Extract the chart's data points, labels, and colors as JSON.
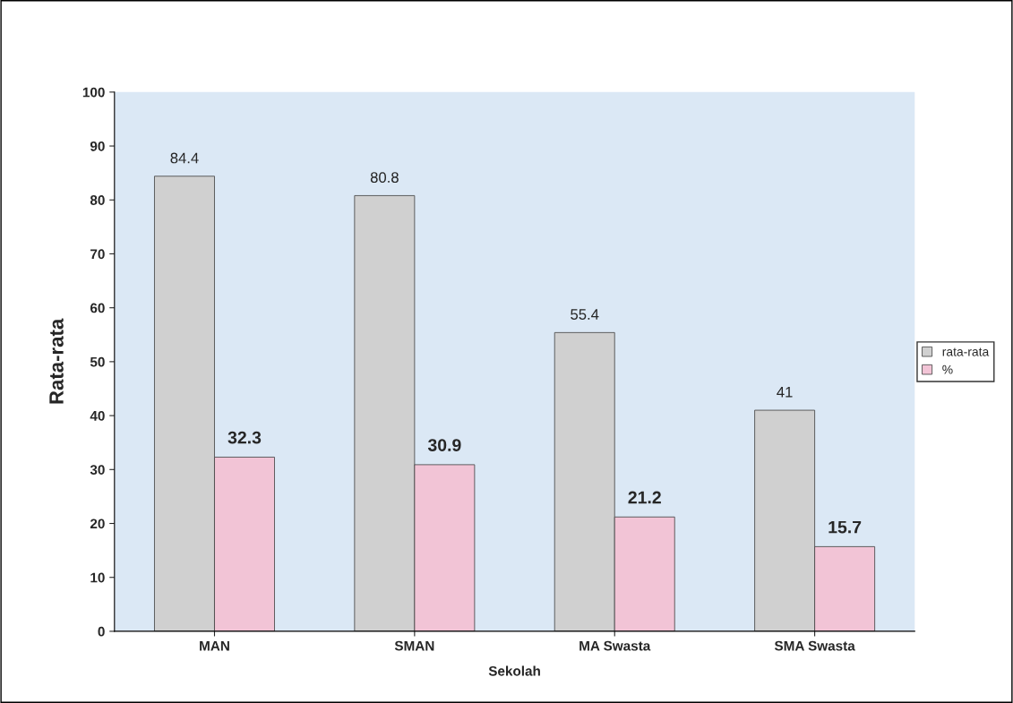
{
  "chart_data": {
    "type": "bar",
    "xlabel": "Sekolah",
    "ylabel": "Rata-rata",
    "categories": [
      "MAN",
      "SMAN",
      "MA Swasta",
      "SMA Swasta"
    ],
    "series": [
      {
        "name": "rata-rata",
        "color": "#d0d0d0",
        "values": [
          84.4,
          80.8,
          55.4,
          41
        ]
      },
      {
        "name": "%",
        "color": "#f2c4d6",
        "values": [
          32.3,
          30.9,
          21.2,
          15.7
        ]
      }
    ],
    "ylim": [
      0,
      100
    ],
    "yticks": [
      0,
      10,
      20,
      30,
      40,
      50,
      60,
      70,
      80,
      90,
      100
    ],
    "data_labels": true,
    "legend": "right",
    "grid": false
  }
}
